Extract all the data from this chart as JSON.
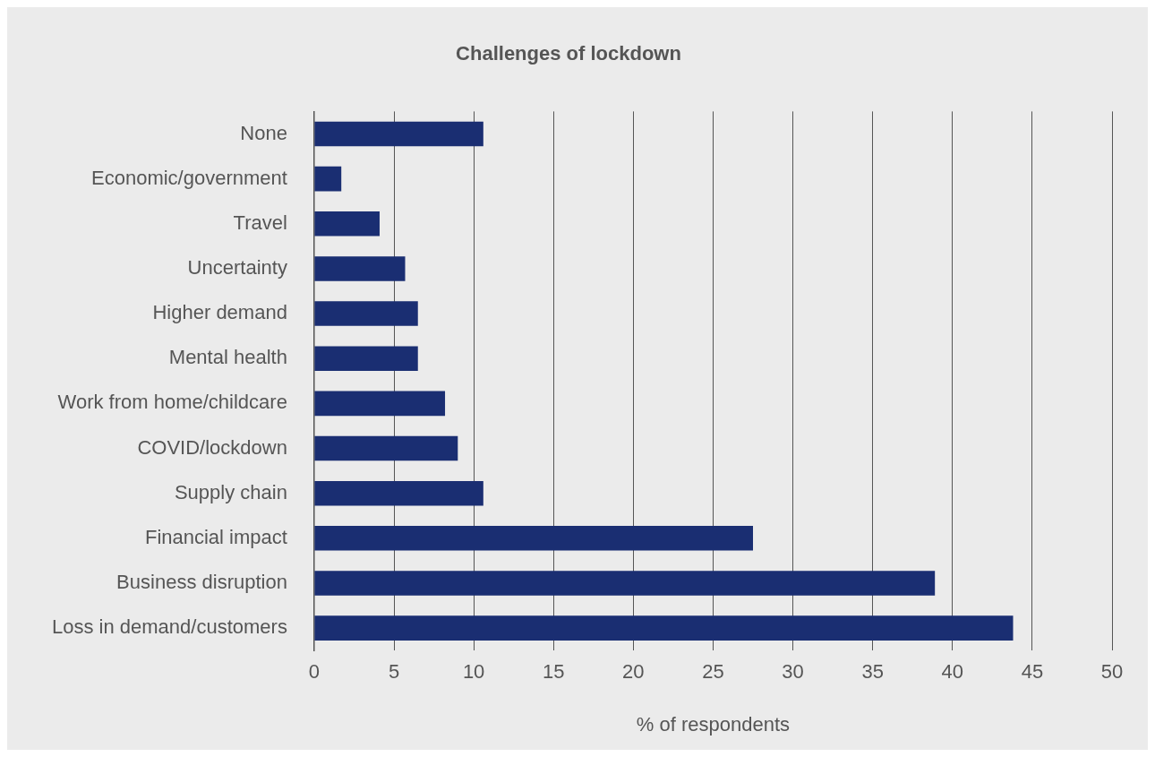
{
  "chart_data": {
    "type": "bar",
    "orientation": "horizontal",
    "title": "Challenges of lockdown",
    "xlabel": "% of respondents",
    "categories": [
      "None",
      "Economic/government",
      "Travel",
      "Uncertainty",
      "Higher demand",
      "Mental health",
      "Work from home/childcare",
      "COVID/lockdown",
      "Supply chain",
      "Financial impact",
      "Business disruption",
      "Loss in demand/customers"
    ],
    "values": [
      10.6,
      1.7,
      4.1,
      5.7,
      6.5,
      6.5,
      8.2,
      9.0,
      10.6,
      27.5,
      38.9,
      43.8
    ],
    "color": "#1a2e72",
    "xlim": [
      0,
      50
    ],
    "xticks": [
      0,
      5,
      10,
      15,
      20,
      25,
      30,
      35,
      40,
      45,
      50
    ],
    "grid": "x",
    "legend": false
  }
}
